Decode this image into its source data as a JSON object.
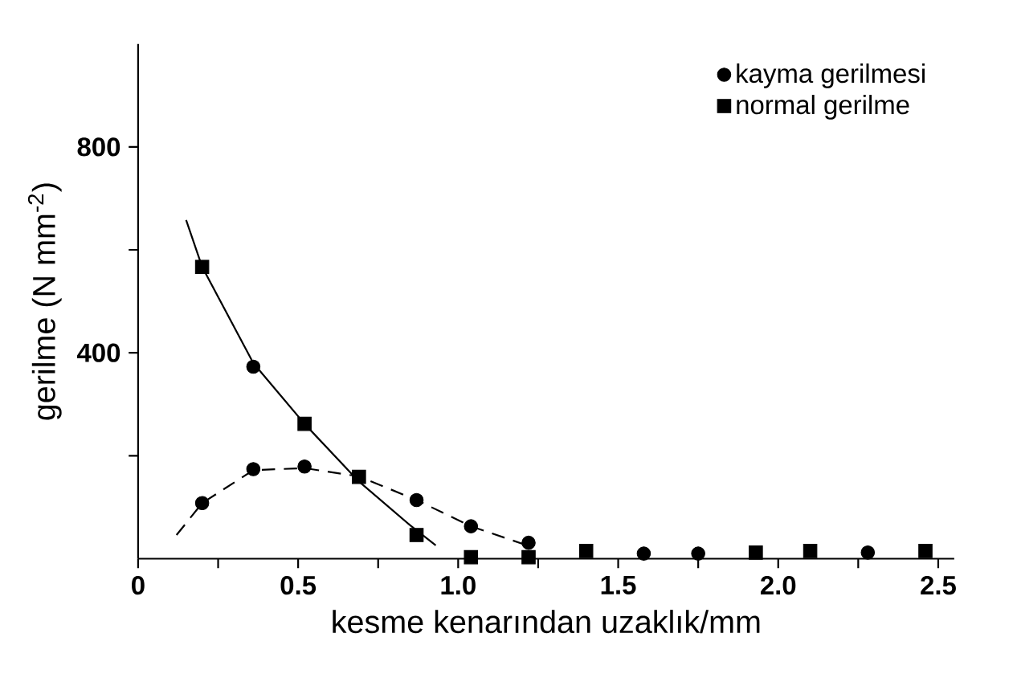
{
  "chart_data": {
    "type": "scatter",
    "xlabel": "kesme kenarından uzaklık/mm",
    "ylabel": "gerilme (N mm$^{-2}$)",
    "xlim": [
      0,
      2.55
    ],
    "ylim": [
      0,
      1000
    ],
    "xticks": [
      0,
      {
        "value": 0.25,
        "label": null
      },
      0.5,
      {
        "value": 0.75,
        "label": null
      },
      {
        "value": 1.0,
        "label": "1.0"
      },
      {
        "value": 1.25,
        "label": null
      },
      1.5,
      {
        "value": 1.75,
        "label": null
      },
      {
        "value": 2.0,
        "label": "2.0"
      },
      {
        "value": 2.25,
        "label": null
      },
      2.5
    ],
    "yticks": [
      {
        "value": 200,
        "label": null
      },
      400,
      {
        "value": 600,
        "label": null
      },
      800
    ],
    "legend": "top right",
    "series": [
      {
        "name": "kayma gerilmesi",
        "marker": "circle",
        "color": "#000000",
        "x": [
          0.2,
          0.36,
          0.36,
          0.52,
          0.87,
          1.04,
          1.22,
          1.58,
          1.75,
          2.28
        ],
        "values": [
          108,
          174,
          373,
          179,
          114,
          63,
          31,
          10,
          10,
          12
        ]
      },
      {
        "name": "normal gerilme",
        "marker": "square",
        "color": "#000000",
        "x": [
          0.2,
          0.52,
          0.69,
          0.87,
          1.04,
          1.22,
          1.4,
          1.93,
          2.1,
          2.46
        ],
        "values": [
          567,
          262,
          159,
          46,
          3,
          3,
          15,
          12,
          15,
          15
        ]
      },
      {
        "type": "line",
        "marker": "none",
        "line_style": "solid",
        "color": "#000000",
        "x": [
          0.15,
          0.2,
          0.36,
          0.52,
          0.69,
          0.85,
          0.93
        ],
        "values": [
          658,
          567,
          380,
          262,
          150,
          65,
          26
        ]
      },
      {
        "type": "line",
        "marker": "none",
        "line_style": "dashed",
        "color": "#000000",
        "x": [
          0.12,
          0.2,
          0.36,
          0.52,
          0.69,
          0.87,
          1.04,
          1.22
        ],
        "values": [
          46,
          108,
          172,
          176,
          160,
          114,
          63,
          25
        ]
      }
    ]
  }
}
